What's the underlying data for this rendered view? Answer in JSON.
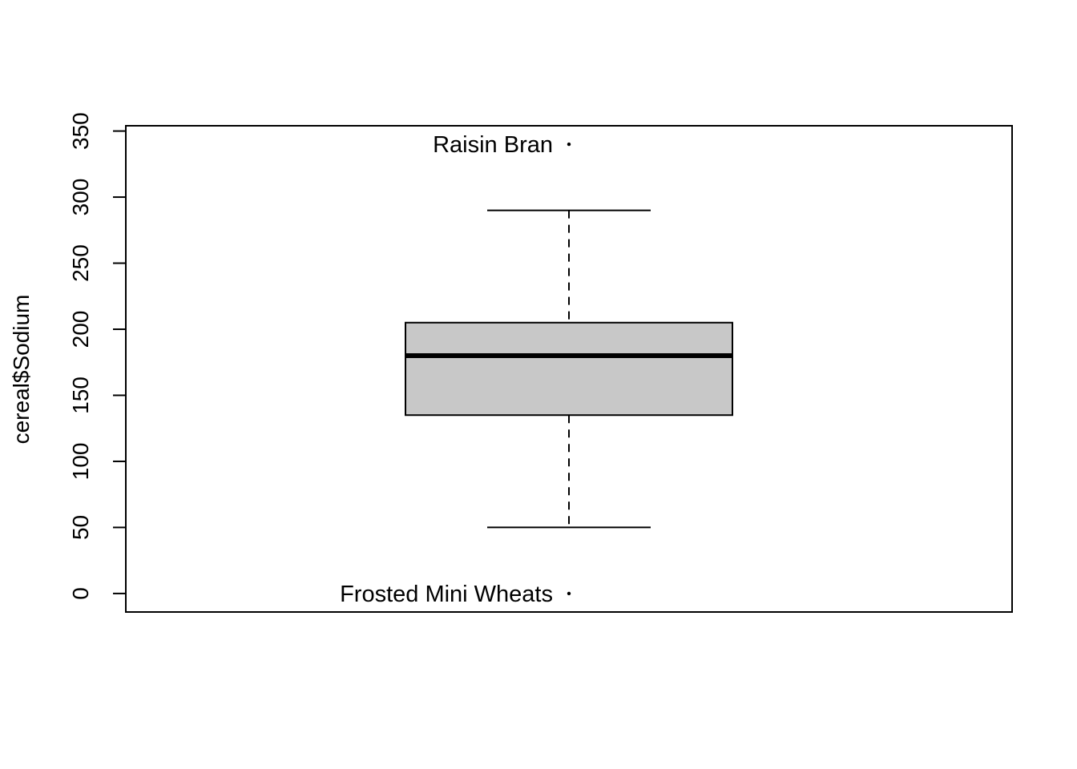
{
  "chart_data": {
    "type": "boxplot",
    "title": "",
    "xlabel": "",
    "ylabel": "cereal$Sodium",
    "ylim": [
      -14,
      354
    ],
    "y_ticks": [
      0,
      50,
      100,
      150,
      200,
      250,
      300,
      350
    ],
    "y_tick_labels": [
      "0",
      "50",
      "100",
      "150",
      "200",
      "250",
      "300",
      "350"
    ],
    "grid": false,
    "legend": "none",
    "box": {
      "whisker_low": 50,
      "q1": 135,
      "median": 180,
      "q3": 205,
      "whisker_high": 290,
      "fill": "#c8c8c8"
    },
    "outliers": [
      {
        "value": 340,
        "label": "Raisin Bran"
      },
      {
        "value": 0,
        "label": "Frosted Mini Wheats"
      }
    ]
  }
}
